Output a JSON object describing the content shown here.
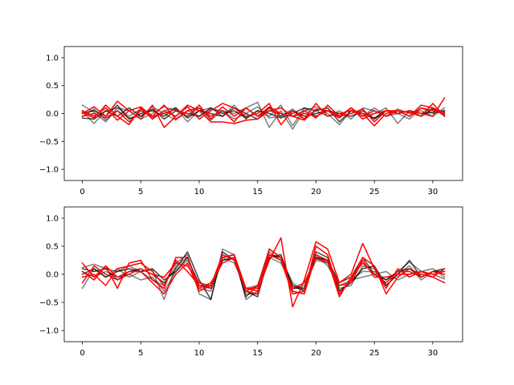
{
  "chart_data": [
    {
      "type": "line",
      "title": "",
      "xlabel": "",
      "ylabel": "",
      "xlim": [
        -1.55,
        32.55
      ],
      "ylim": [
        -1.2,
        1.2
      ],
      "xticks": [
        0,
        5,
        10,
        15,
        20,
        25,
        30
      ],
      "yticks": [
        -1.0,
        -0.5,
        0.0,
        0.5,
        1.0
      ],
      "grid": false,
      "legend": "none",
      "series": [
        {
          "color": "#000000",
          "alpha": 0.5,
          "values": [
            0.15,
            0.02,
            -0.15,
            0.1,
            0.05,
            -0.1,
            0.0,
            0.12,
            0.05,
            -0.05,
            0.1,
            -0.12,
            0.05,
            0.0,
            0.1,
            0.2,
            -0.25,
            0.05,
            -0.28,
            0.05,
            0.12,
            0.0,
            -0.2,
            0.05,
            -0.05,
            0.1,
            -0.05,
            0.0,
            -0.1,
            0.1,
            0.0,
            0.05
          ]
        },
        {
          "color": "#000000",
          "alpha": 0.5,
          "values": [
            0.05,
            -0.18,
            0.05,
            0.1,
            -0.05,
            0.08,
            -0.08,
            0.05,
            0.1,
            -0.15,
            0.05,
            0.1,
            -0.05,
            0.15,
            -0.1,
            0.05,
            -0.05,
            0.15,
            -0.22,
            0.1,
            -0.05,
            0.05,
            -0.08,
            0.1,
            -0.05,
            0.0,
            0.1,
            -0.18,
            0.05,
            0.0,
            0.1,
            -0.05
          ]
        },
        {
          "color": "#000000",
          "alpha": 0.5,
          "values": [
            -0.05,
            0.08,
            -0.12,
            0.05,
            -0.08,
            -0.05,
            0.12,
            0.0,
            -0.12,
            0.05,
            -0.05,
            0.08,
            0.05,
            -0.1,
            0.0,
            0.12,
            -0.08,
            -0.05,
            0.08,
            -0.1,
            0.05,
            -0.05,
            0.05,
            -0.1,
            0.1,
            0.05,
            -0.05,
            0.08,
            0.0,
            0.05,
            -0.05,
            0.1
          ]
        },
        {
          "color": "#000000",
          "alpha": 0.75,
          "values": [
            -0.08,
            -0.1,
            0.05,
            -0.05,
            0.1,
            -0.05,
            0.08,
            -0.1,
            0.05,
            0.0,
            -0.05,
            0.1,
            0.0,
            0.05,
            -0.08,
            0.05,
            0.0,
            -0.08,
            0.0,
            0.1,
            0.05,
            0.1,
            -0.15,
            0.05,
            0.0,
            -0.08,
            0.05,
            0.0,
            0.05,
            -0.05,
            0.08,
            -0.02
          ]
        },
        {
          "color": "#000000",
          "alpha": 0.75,
          "values": [
            0.0,
            0.05,
            -0.05,
            0.15,
            -0.1,
            0.0,
            0.05,
            -0.05,
            0.1,
            -0.08,
            0.05,
            0.0,
            -0.05,
            0.1,
            0.0,
            -0.1,
            0.1,
            -0.05,
            0.05,
            -0.05,
            0.0,
            0.05,
            0.0,
            -0.05,
            0.05,
            -0.1,
            0.05,
            0.0,
            0.05,
            0.0,
            0.02,
            0.05
          ]
        },
        {
          "color": "#ff0000",
          "alpha": 1.0,
          "values": [
            0.0,
            0.12,
            -0.05,
            0.22,
            0.05,
            -0.1,
            0.15,
            -0.25,
            -0.05,
            0.12,
            -0.1,
            0.05,
            0.18,
            0.1,
            -0.05,
            0.0,
            0.18,
            -0.2,
            0.05,
            -0.1,
            0.18,
            -0.05,
            0.0,
            0.05,
            0.0,
            -0.22,
            0.0,
            0.05,
            -0.05,
            0.15,
            0.1,
            0.02
          ]
        },
        {
          "color": "#ff0000",
          "alpha": 1.0,
          "values": [
            0.05,
            -0.05,
            0.1,
            -0.12,
            0.05,
            0.12,
            -0.05,
            0.15,
            -0.1,
            0.05,
            0.1,
            -0.05,
            0.05,
            -0.15,
            0.1,
            -0.05,
            0.05,
            0.1,
            -0.05,
            -0.12,
            0.08,
            0.05,
            -0.08,
            0.1,
            -0.05,
            0.05,
            -0.05,
            0.05,
            0.02,
            -0.05,
            0.18,
            -0.05
          ]
        },
        {
          "color": "#ff0000",
          "alpha": 1.0,
          "values": [
            -0.05,
            0.0,
            -0.08,
            0.05,
            -0.15,
            0.05,
            -0.05,
            0.0,
            0.08,
            -0.05,
            0.15,
            -0.1,
            0.12,
            -0.05,
            0.1,
            -0.05,
            0.12,
            0.0,
            -0.05,
            0.05,
            -0.08,
            0.15,
            -0.05,
            0.0,
            0.08,
            -0.15,
            0.05,
            0.0,
            0.05,
            0.0,
            -0.05,
            0.28
          ]
        },
        {
          "color": "#ff0000",
          "alpha": 1.0,
          "values": [
            0.02,
            -0.08,
            0.15,
            -0.05,
            -0.2,
            0.1,
            -0.1,
            0.05,
            -0.05,
            0.15,
            0.05,
            -0.15,
            -0.15,
            -0.18,
            -0.12,
            -0.1,
            0.05,
            0.0,
            -0.05,
            0.0,
            -0.05,
            0.05,
            -0.05,
            0.1,
            -0.1,
            0.0,
            0.05,
            0.05,
            -0.05,
            0.1,
            0.05,
            0.0
          ]
        }
      ]
    },
    {
      "type": "line",
      "title": "",
      "xlabel": "",
      "ylabel": "",
      "xlim": [
        -1.55,
        32.55
      ],
      "ylim": [
        -1.2,
        1.2
      ],
      "xticks": [
        0,
        5,
        10,
        15,
        20,
        25,
        30
      ],
      "yticks": [
        -1.0,
        -0.5,
        0.0,
        0.5,
        1.0
      ],
      "grid": false,
      "legend": "none",
      "series": [
        {
          "color": "#000000",
          "alpha": 0.5,
          "values": [
            0.12,
            0.18,
            0.1,
            0.05,
            0.15,
            0.05,
            0.08,
            -0.45,
            0.15,
            0.3,
            -0.25,
            -0.3,
            0.25,
            0.3,
            -0.35,
            -0.35,
            0.3,
            0.2,
            -0.2,
            -0.25,
            0.35,
            0.15,
            -0.2,
            -0.1,
            0.05,
            0.05,
            -0.1,
            0.05,
            0.22,
            0.05,
            0.1,
            -0.05
          ]
        },
        {
          "color": "#000000",
          "alpha": 0.5,
          "values": [
            -0.25,
            0.1,
            -0.05,
            0.1,
            -0.05,
            0.05,
            -0.1,
            -0.2,
            0.2,
            0.35,
            -0.35,
            -0.45,
            0.45,
            0.35,
            -0.45,
            -0.3,
            0.4,
            0.25,
            -0.25,
            -0.2,
            0.25,
            0.2,
            -0.3,
            -0.1,
            -0.05,
            0.0,
            0.05,
            -0.1,
            0.0,
            0.05,
            0.0,
            -0.08
          ]
        },
        {
          "color": "#000000",
          "alpha": 0.5,
          "values": [
            0.05,
            -0.05,
            0.05,
            -0.05,
            0.0,
            -0.1,
            -0.05,
            -0.3,
            0.05,
            0.25,
            -0.15,
            -0.2,
            0.3,
            0.2,
            -0.25,
            -0.2,
            0.45,
            0.3,
            -0.15,
            -0.3,
            0.3,
            0.25,
            -0.25,
            -0.2,
            0.15,
            0.1,
            -0.2,
            0.0,
            0.15,
            -0.1,
            0.05,
            0.0
          ]
        },
        {
          "color": "#000000",
          "alpha": 0.75,
          "values": [
            0.1,
            0.05,
            0.1,
            -0.1,
            0.05,
            0.1,
            0.0,
            -0.15,
            0.1,
            0.4,
            -0.1,
            -0.45,
            0.4,
            0.25,
            -0.3,
            -0.4,
            0.35,
            0.3,
            -0.2,
            -0.3,
            0.4,
            0.3,
            -0.3,
            -0.15,
            0.1,
            0.15,
            -0.2,
            0.0,
            0.25,
            -0.05,
            0.05,
            0.1
          ]
        },
        {
          "color": "#000000",
          "alpha": 0.75,
          "values": [
            0.0,
            0.1,
            -0.05,
            0.05,
            0.1,
            0.05,
            0.1,
            -0.1,
            0.05,
            0.3,
            -0.2,
            -0.25,
            0.25,
            0.3,
            -0.4,
            -0.2,
            0.3,
            0.35,
            -0.25,
            -0.25,
            0.3,
            0.25,
            -0.15,
            -0.05,
            0.3,
            0.0,
            -0.1,
            0.05,
            0.1,
            -0.05,
            0.05,
            0.05
          ]
        },
        {
          "color": "#ff0000",
          "alpha": 1.0,
          "values": [
            0.2,
            -0.05,
            0.15,
            -0.25,
            0.2,
            0.25,
            -0.1,
            -0.25,
            0.3,
            0.3,
            -0.25,
            -0.15,
            0.2,
            0.3,
            -0.25,
            -0.3,
            0.25,
            0.65,
            -0.58,
            -0.1,
            0.58,
            0.45,
            -0.15,
            0.0,
            0.55,
            0.1,
            -0.25,
            0.1,
            -0.05,
            0.05,
            -0.05,
            0.1
          ]
        },
        {
          "color": "#ff0000",
          "alpha": 1.0,
          "values": [
            -0.05,
            0.0,
            -0.2,
            0.1,
            0.15,
            0.2,
            0.05,
            -0.2,
            0.25,
            0.05,
            -0.2,
            -0.2,
            0.3,
            0.35,
            -0.3,
            -0.35,
            0.35,
            0.25,
            -0.35,
            -0.3,
            0.5,
            0.35,
            -0.35,
            -0.1,
            0.3,
            0.15,
            -0.35,
            -0.05,
            0.1,
            0.0,
            -0.05,
            -0.15
          ]
        },
        {
          "color": "#ff0000",
          "alpha": 1.0,
          "values": [
            -0.15,
            0.15,
            0.0,
            -0.1,
            0.0,
            0.1,
            0.0,
            -0.05,
            0.2,
            0.15,
            -0.15,
            -0.25,
            0.3,
            0.35,
            -0.25,
            -0.25,
            0.45,
            0.3,
            -0.3,
            -0.35,
            0.35,
            0.25,
            -0.4,
            -0.05,
            0.2,
            0.0,
            -0.15,
            0.05,
            0.05,
            -0.05,
            0.05,
            0.0
          ]
        },
        {
          "color": "#ff0000",
          "alpha": 1.0,
          "values": [
            0.05,
            -0.1,
            0.15,
            -0.05,
            0.05,
            0.05,
            -0.15,
            -0.35,
            0.0,
            0.2,
            -0.3,
            -0.2,
            0.35,
            0.25,
            -0.3,
            -0.2,
            0.35,
            0.25,
            -0.25,
            -0.15,
            0.28,
            0.22,
            -0.2,
            -0.15,
            0.25,
            -0.05,
            -0.05,
            0.0,
            0.0,
            0.05,
            0.0,
            0.05
          ]
        }
      ]
    }
  ]
}
